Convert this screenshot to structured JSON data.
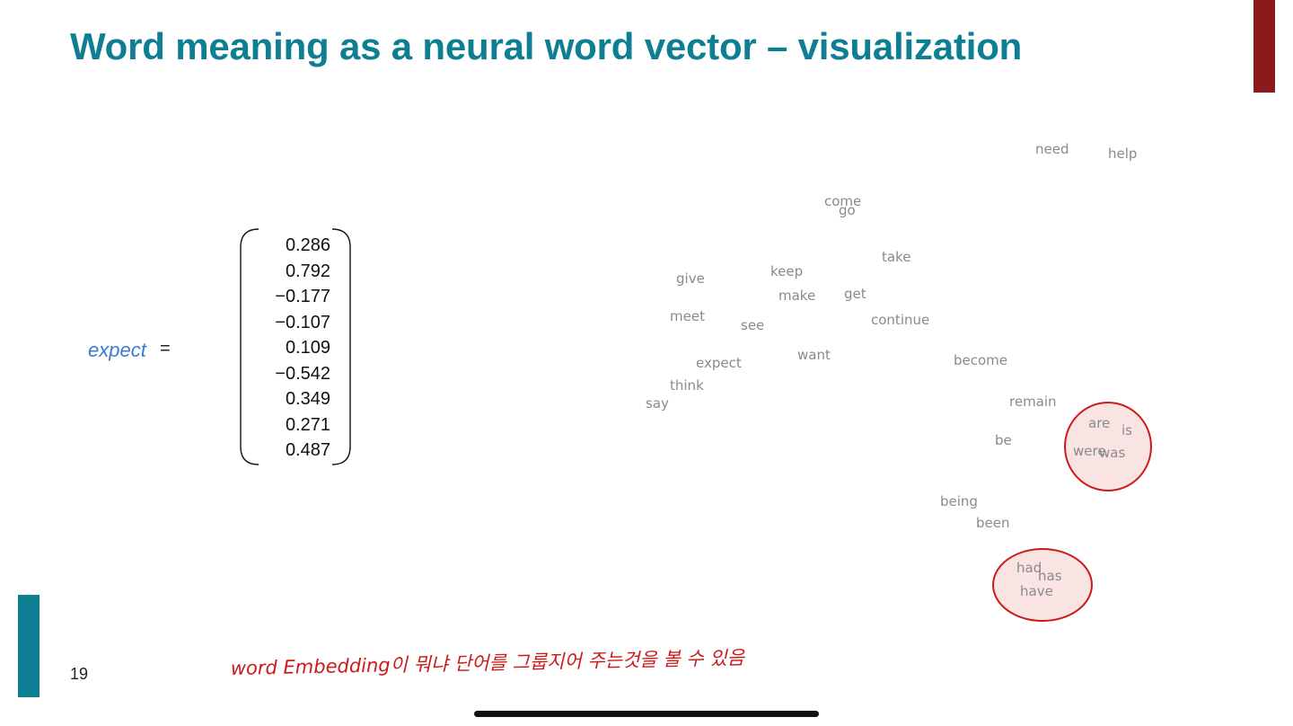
{
  "slide": {
    "title": "Word meaning as a neural word vector – visualization",
    "page_number": "19",
    "accent_colors": {
      "title": "#0e7e93",
      "top_bar": "#8b1a1a",
      "bottom_bar": "#0e7e93",
      "annotation": "#cc1a1a"
    }
  },
  "vector": {
    "word": "expect",
    "equals": "=",
    "values": [
      "0.286",
      "0.792",
      "−0.177",
      "−0.107",
      "0.109",
      "−0.542",
      "0.349",
      "0.271",
      "0.487"
    ]
  },
  "scatter": {
    "words": [
      "need",
      "help",
      "come",
      "go",
      "take",
      "keep",
      "give",
      "make",
      "get",
      "meet",
      "see",
      "continue",
      "want",
      "expect",
      "become",
      "think",
      "say",
      "remain",
      "are",
      "is",
      "be",
      "were",
      "was",
      "being",
      "been",
      "had",
      "has",
      "have"
    ],
    "highlight_color": "#cc1a1a"
  },
  "annotation": {
    "text": "word Embedding이 뭐냐 단어를 그룹지어 주는것을 볼 수 있음"
  }
}
